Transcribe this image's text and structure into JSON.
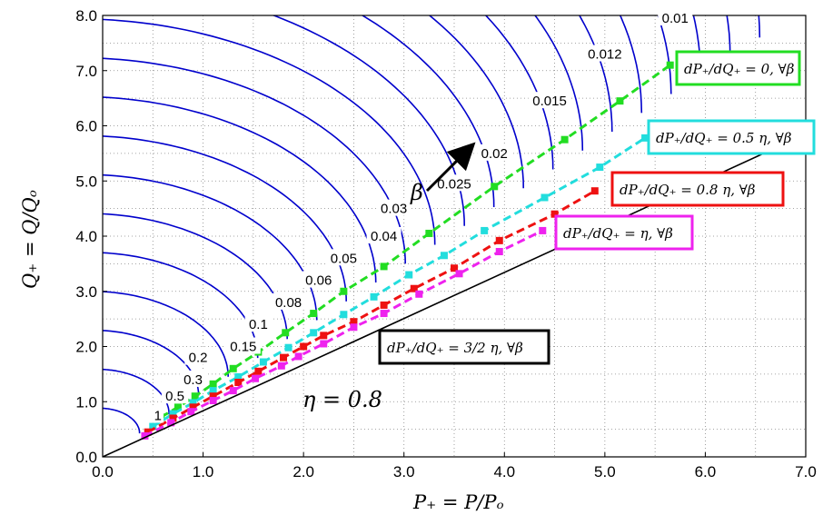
{
  "chart_data": {
    "type": "line",
    "xlabel": "P₊ = P/Pₒ",
    "ylabel": "Q₊ = Q/Qₒ",
    "xlim": [
      0,
      7
    ],
    "ylim": [
      0,
      8
    ],
    "x_ticks": [
      "0.0",
      "1.0",
      "2.0",
      "3.0",
      "4.0",
      "5.0",
      "6.0",
      "7.0"
    ],
    "y_ticks": [
      "0.0",
      "1.0",
      "2.0",
      "3.0",
      "4.0",
      "5.0",
      "6.0",
      "7.0",
      "8.0"
    ],
    "grid": "dotted",
    "eta_label": "η = 0.8",
    "beta_label": "β",
    "contour_labels": [
      {
        "text": "0.01",
        "x": 5.7,
        "y": 7.95
      },
      {
        "text": "0.012",
        "x": 5.0,
        "y": 7.3
      },
      {
        "text": "0.015",
        "x": 4.45,
        "y": 6.45
      },
      {
        "text": "0.02",
        "x": 3.9,
        "y": 5.5
      },
      {
        "text": "0.025",
        "x": 3.5,
        "y": 4.95
      },
      {
        "text": "0.03",
        "x": 2.9,
        "y": 4.5
      },
      {
        "text": "0.04",
        "x": 2.8,
        "y": 4.0
      },
      {
        "text": "0.05",
        "x": 2.4,
        "y": 3.6
      },
      {
        "text": "0.06",
        "x": 2.15,
        "y": 3.2
      },
      {
        "text": "0.08",
        "x": 1.85,
        "y": 2.8
      },
      {
        "text": "0.1",
        "x": 1.55,
        "y": 2.4
      },
      {
        "text": "0.15",
        "x": 1.4,
        "y": 2.0
      },
      {
        "text": "0.2",
        "x": 0.95,
        "y": 1.8
      },
      {
        "text": "0.3",
        "x": 0.9,
        "y": 1.4
      },
      {
        "text": "0.5",
        "x": 0.72,
        "y": 1.1
      },
      {
        "text": "1",
        "x": 0.55,
        "y": 0.75
      }
    ],
    "contour_beta_values": [
      1,
      0.5,
      0.3,
      0.2,
      0.15,
      0.1,
      0.08,
      0.06,
      0.05,
      0.04,
      0.03,
      0.025,
      0.02,
      0.015,
      0.012,
      0.01
    ],
    "series": [
      {
        "color": "#22dd22",
        "style": "dashed-square",
        "label": "dP₊/dQ₊ = 0, ∀β",
        "x": [
          0.58,
          0.75,
          0.92,
          1.1,
          1.3,
          1.55,
          1.82,
          2.1,
          2.4,
          2.8,
          3.25,
          3.9,
          4.6,
          5.15,
          5.65
        ],
        "y": [
          0.72,
          0.9,
          1.1,
          1.32,
          1.6,
          1.9,
          2.25,
          2.6,
          3.0,
          3.45,
          4.05,
          4.9,
          5.75,
          6.45,
          7.1
        ]
      },
      {
        "color": "#22dddd",
        "style": "dashed-square",
        "label": "dP₊/dQ₊ = 0.5 η, ∀β",
        "x": [
          0.5,
          0.7,
          0.9,
          1.1,
          1.35,
          1.6,
          1.85,
          2.1,
          2.4,
          2.7,
          3.05,
          3.4,
          3.8,
          4.4,
          4.95,
          5.4
        ],
        "y": [
          0.55,
          0.78,
          0.98,
          1.2,
          1.45,
          1.72,
          1.98,
          2.25,
          2.58,
          2.9,
          3.3,
          3.65,
          4.1,
          4.7,
          5.25,
          5.78
        ]
      },
      {
        "color": "#ee1111",
        "style": "dashed-square",
        "label": "dP₊/dQ₊ = 0.8 η, ∀β",
        "x": [
          0.45,
          0.7,
          0.9,
          1.1,
          1.35,
          1.55,
          1.8,
          2.0,
          2.2,
          2.5,
          2.8,
          3.1,
          3.5,
          3.95,
          4.5,
          4.9
        ],
        "y": [
          0.45,
          0.7,
          0.9,
          1.1,
          1.35,
          1.55,
          1.8,
          2.0,
          2.2,
          2.45,
          2.75,
          3.05,
          3.42,
          3.92,
          4.4,
          4.82
        ]
      },
      {
        "color": "#ee22ee",
        "style": "dashed-square",
        "label": "dP₊/dQ₊ = η, ∀β",
        "x": [
          0.42,
          0.68,
          0.88,
          1.1,
          1.3,
          1.52,
          1.78,
          1.95,
          2.2,
          2.5,
          2.8,
          3.15,
          3.55,
          3.95,
          4.38
        ],
        "y": [
          0.38,
          0.62,
          0.82,
          1.02,
          1.2,
          1.42,
          1.65,
          1.82,
          2.05,
          2.35,
          2.6,
          2.95,
          3.32,
          3.72,
          4.1
        ]
      },
      {
        "color": "#000000",
        "style": "solid",
        "label": "dP₊/dQ₊ = 3/2 η, ∀β",
        "x": [
          0.0,
          7.0
        ],
        "y": [
          0.0,
          5.85
        ]
      }
    ],
    "box_labels": [
      {
        "name": "green",
        "text": "dP₊/dQ₊ = 0, ∀β",
        "color": "#22dd22"
      },
      {
        "name": "cyan",
        "text": "dP₊/dQ₊ = 0.5 η, ∀β",
        "color": "#22dddd"
      },
      {
        "name": "red",
        "text": "dP₊/dQ₊ = 0.8 η, ∀β",
        "color": "#ee1111"
      },
      {
        "name": "magenta",
        "text": "dP₊/dQ₊ = η, ∀β",
        "color": "#ee22ee"
      },
      {
        "name": "black",
        "text": "dP₊/dQ₊ = 3/2 η, ∀β",
        "color": "#000000"
      }
    ],
    "contour_color": "#0000cc"
  }
}
